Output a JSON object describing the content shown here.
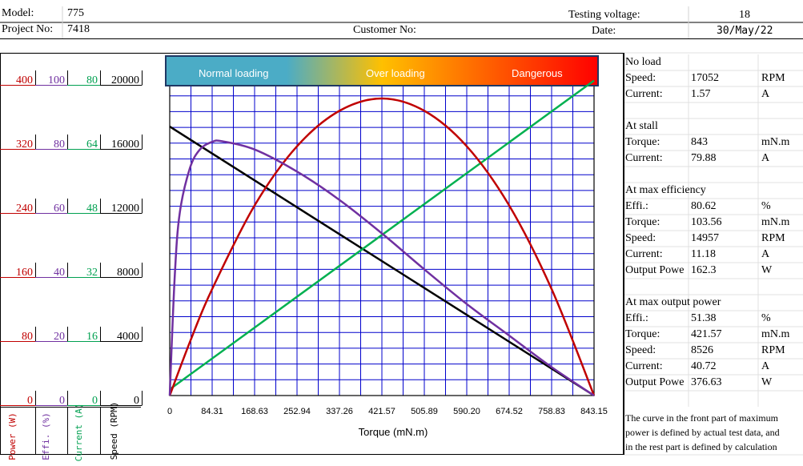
{
  "header": {
    "model_label": "Model:",
    "model_value": "775",
    "project_label": "Project No:",
    "project_value": "7418",
    "customer_label": "Customer No:",
    "voltage_label": "Testing voltage:",
    "voltage_value": "18",
    "date_label": "Date:",
    "date_value": "30/May/22"
  },
  "loading_bar": {
    "normal": "Normal loading",
    "over": "Over loading",
    "danger": "Dangerous"
  },
  "axes": {
    "power_label": "Power (W)",
    "effi_label": "Effi. (%)",
    "current_label": "Current (A)",
    "speed_label": "Speed (RPM)",
    "power_ticks": [
      "400",
      "320",
      "240",
      "160",
      "80",
      "0"
    ],
    "effi_ticks": [
      "100",
      "80",
      "60",
      "40",
      "20",
      "0"
    ],
    "current_ticks": [
      "80",
      "64",
      "48",
      "32",
      "16",
      "0"
    ],
    "speed_ticks": [
      "20000",
      "16000",
      "12000",
      "8000",
      "4000",
      "0"
    ],
    "torque_ticks": [
      "0",
      "84.31",
      "168.63",
      "252.94",
      "337.26",
      "421.57",
      "505.89",
      "590.20",
      "674.52",
      "758.83",
      "843.15"
    ],
    "torque_label": "Torque (mN.m)"
  },
  "colors": {
    "power": "#c00000",
    "efficiency": "#7030a0",
    "current": "#00b050",
    "speed": "#000000",
    "grid": "#0000cc",
    "power_text": "#c00000",
    "effi_text": "#7030a0",
    "current_text": "#00a050"
  },
  "no_load": {
    "title": "No load",
    "speed_label": "Speed:",
    "speed_value": "17052",
    "speed_unit": "RPM",
    "current_label": "Current:",
    "current_value": "1.57",
    "current_unit": "A"
  },
  "stall": {
    "title": "At stall",
    "torque_label": "Torque:",
    "torque_value": "843",
    "torque_unit": "mN.m",
    "current_label": "Current:",
    "current_value": "79.88",
    "current_unit": "A"
  },
  "max_eff": {
    "title": "At max efficiency",
    "effi_label": "Effi.:",
    "effi_value": "80.62",
    "effi_unit": "%",
    "torque_label": "Torque:",
    "torque_value": "103.56",
    "torque_unit": "mN.m",
    "speed_label": "Speed:",
    "speed_value": "14957",
    "speed_unit": "RPM",
    "current_label": "Current:",
    "current_value": "11.18",
    "current_unit": "A",
    "power_label": "Output Powe",
    "power_value": "162.3",
    "power_unit": "W"
  },
  "max_power": {
    "title": "At max output power",
    "effi_label": "Effi.:",
    "effi_value": "51.38",
    "effi_unit": "%",
    "torque_label": "Torque:",
    "torque_value": "421.57",
    "torque_unit": "mN.m",
    "speed_label": "Speed:",
    "speed_value": "8526",
    "speed_unit": "RPM",
    "current_label": "Current:",
    "current_value": "40.72",
    "current_unit": "A",
    "power_label": "Output Powe",
    "power_value": "376.63",
    "power_unit": "W"
  },
  "note": {
    "line1": "The curve in the front part of maximum",
    "line2": "power is defined by actual test data, and",
    "line3": "in the rest part is defined by calculation"
  },
  "chart_data": {
    "type": "line",
    "xlabel": "Torque (mN.m)",
    "xlim": [
      0,
      843.15
    ],
    "grid": true,
    "series": [
      {
        "name": "Speed",
        "axis": "speed",
        "ylim": [
          0,
          20000
        ],
        "x": [
          0,
          843.15
        ],
        "values": [
          17052,
          0
        ]
      },
      {
        "name": "Current",
        "axis": "current",
        "ylim": [
          0,
          80
        ],
        "x": [
          0,
          843.15
        ],
        "values": [
          1.57,
          79.88
        ]
      },
      {
        "name": "Power",
        "axis": "power",
        "ylim": [
          0,
          400
        ],
        "x": [
          0,
          42,
          84.31,
          168.63,
          252.94,
          337.26,
          421.57,
          505.89,
          590.2,
          674.52,
          758.83,
          843.15
        ],
        "values": [
          0,
          71,
          135,
          241,
          316,
          361,
          376.6,
          361,
          316,
          241,
          135,
          0
        ]
      },
      {
        "name": "Efficiency",
        "axis": "efficiency",
        "ylim": [
          0,
          100
        ],
        "x": [
          0,
          10,
          20,
          40,
          60,
          84.31,
          103.56,
          168.63,
          252.94,
          337.26,
          421.57,
          505.89,
          590.2,
          674.52,
          758.83,
          843.15
        ],
        "values": [
          0,
          38,
          58,
          72,
          78,
          80.4,
          80.62,
          78,
          71,
          62,
          51.4,
          40,
          29,
          19,
          9,
          0
        ]
      }
    ]
  }
}
